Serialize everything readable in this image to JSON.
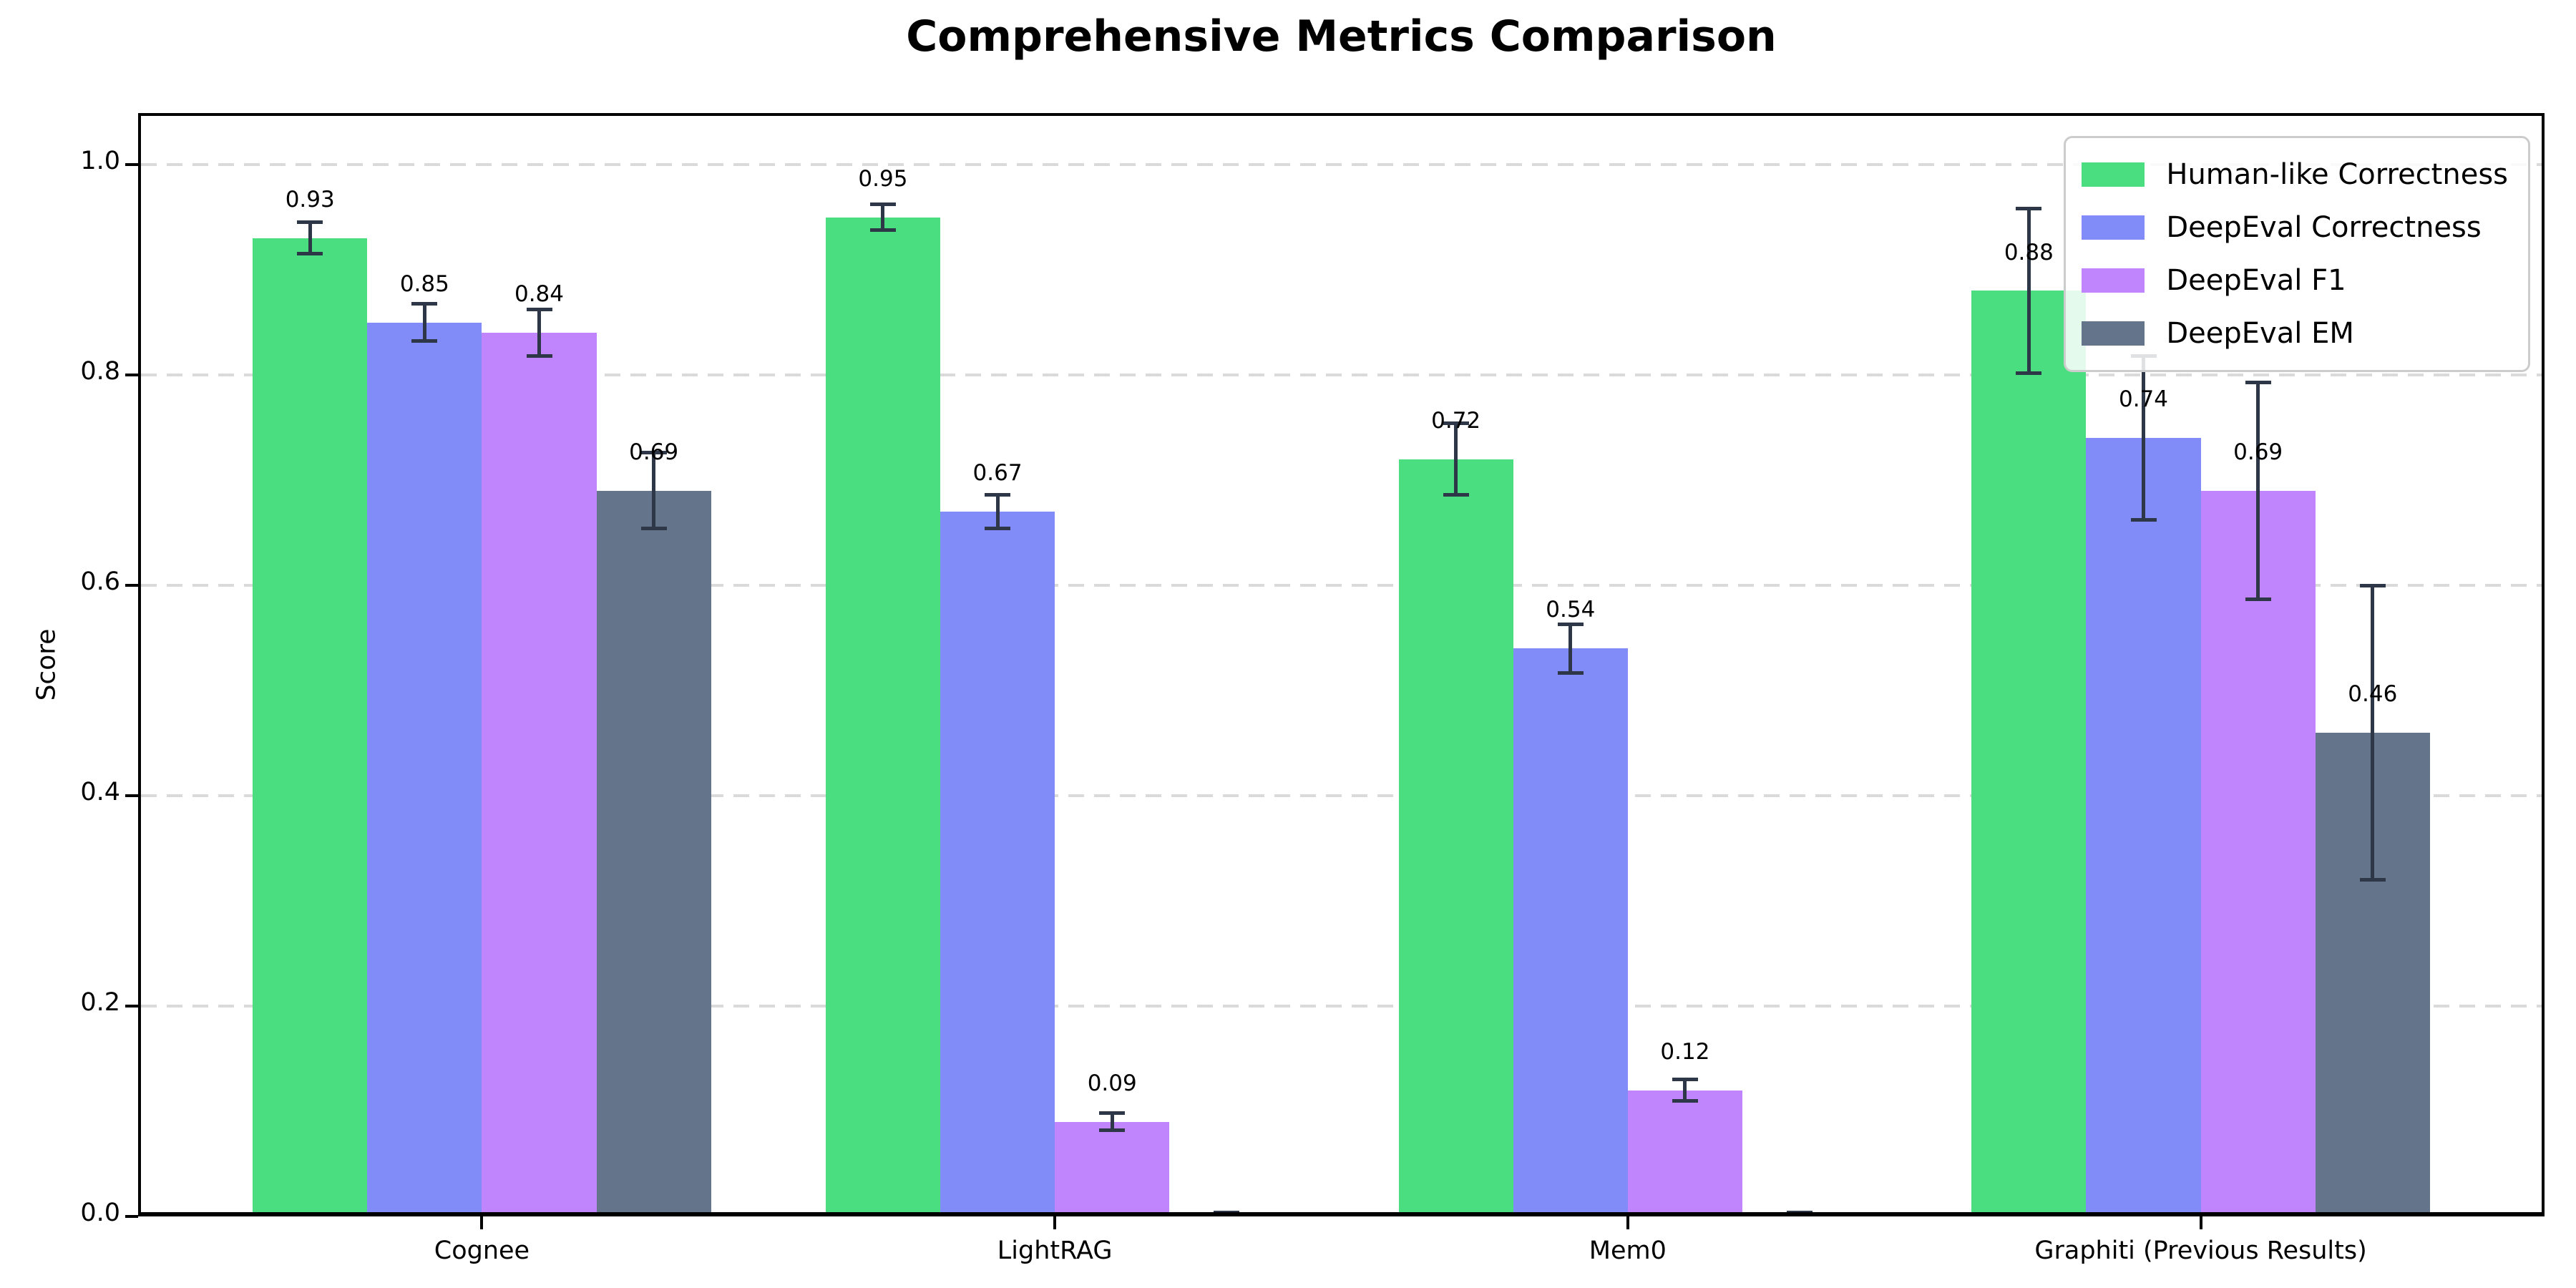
{
  "chart_data": {
    "type": "bar",
    "title": "Comprehensive Metrics Comparison",
    "xlabel": "",
    "ylabel": "Score",
    "ylim": [
      0,
      1.049
    ],
    "yticks": [
      0.0,
      0.2,
      0.4,
      0.6,
      0.8,
      1.0
    ],
    "ytick_labels": [
      "0.0",
      "0.2",
      "0.4",
      "0.6",
      "0.8",
      "1.0"
    ],
    "grid": "horizontal-dashed",
    "legend_position": "upper right",
    "categories": [
      "Cognee",
      "LightRAG",
      "Mem0",
      "Graphiti (Previous Results)"
    ],
    "series": [
      {
        "name": "Human-like Correctness",
        "color": "#4ade80",
        "values": [
          0.93,
          0.95,
          0.72,
          0.88
        ],
        "errors": [
          0.015,
          0.012,
          0.034,
          0.078
        ],
        "labels": [
          "0.93",
          "0.95",
          "0.72",
          "0.88"
        ]
      },
      {
        "name": "DeepEval Correctness",
        "color": "#818cf8",
        "values": [
          0.85,
          0.67,
          0.54,
          0.74
        ],
        "errors": [
          0.018,
          0.016,
          0.023,
          0.078
        ],
        "labels": [
          "0.85",
          "0.67",
          "0.54",
          "0.74"
        ]
      },
      {
        "name": "DeepEval F1",
        "color": "#c084fc",
        "values": [
          0.84,
          0.09,
          0.12,
          0.69
        ],
        "errors": [
          0.022,
          0.008,
          0.01,
          0.103
        ],
        "labels": [
          "0.84",
          "0.09",
          "0.12",
          "0.69"
        ]
      },
      {
        "name": "DeepEval EM",
        "color": "#64748b",
        "values": [
          0.69,
          0.0,
          0.0,
          0.46
        ],
        "errors": [
          0.036,
          0.004,
          0.004,
          0.14
        ],
        "labels": [
          "0.69",
          null,
          null,
          "0.46"
        ]
      }
    ],
    "errorbar_color": "#2d3748"
  }
}
